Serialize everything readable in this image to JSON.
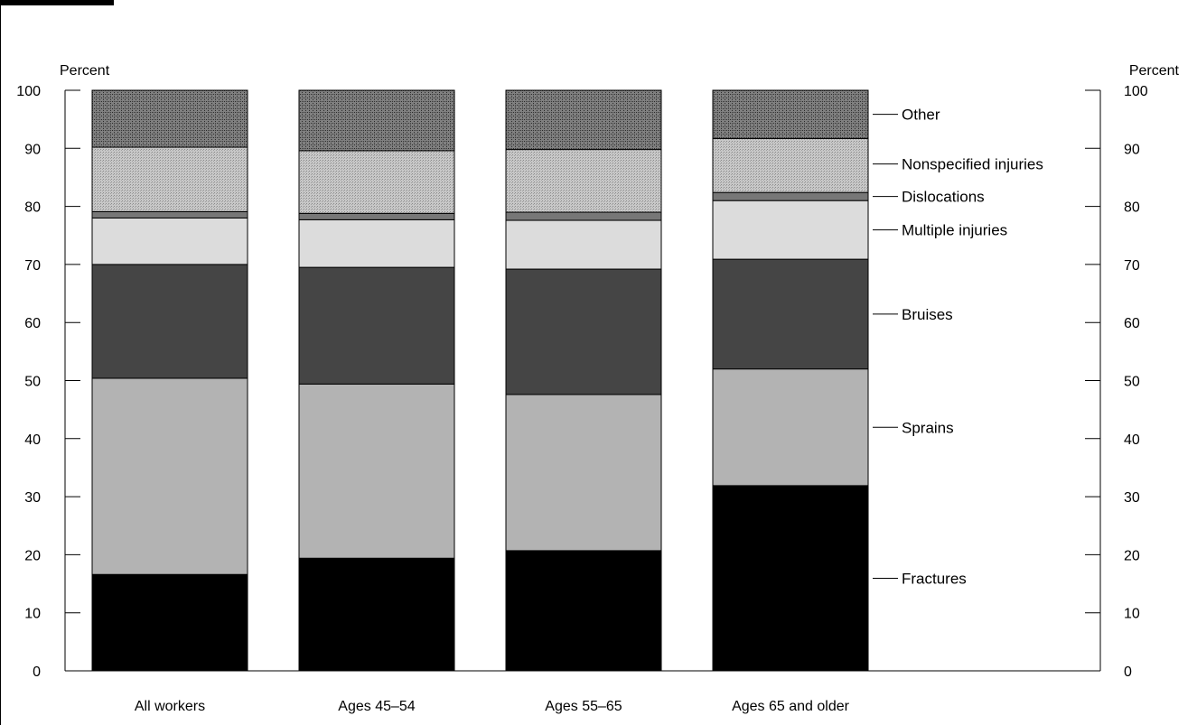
{
  "chart_data": {
    "type": "bar",
    "stacked": true,
    "categories": [
      "All workers",
      "Ages 45–54",
      "Ages 55–65",
      "Ages 65 and older"
    ],
    "series": [
      {
        "name": "Fractures",
        "values": [
          16.6,
          19.4,
          20.7,
          31.9
        ],
        "color": "#000000"
      },
      {
        "name": "Sprains",
        "values": [
          33.8,
          30.0,
          26.9,
          20.1
        ],
        "color": "#b3b3b3"
      },
      {
        "name": "Bruises",
        "values": [
          19.6,
          20.1,
          21.6,
          18.9
        ],
        "color": "#454545"
      },
      {
        "name": "Multiple injuries",
        "values": [
          8.0,
          8.2,
          8.4,
          10.1
        ],
        "color": "#dcdcdc"
      },
      {
        "name": "Dislocations",
        "values": [
          1.1,
          1.1,
          1.4,
          1.4
        ],
        "color": "#777777"
      },
      {
        "name": "Nonspecified injuries",
        "values": [
          11.1,
          10.8,
          10.8,
          9.3
        ],
        "color": "#bdbdbd"
      },
      {
        "name": "Other",
        "values": [
          9.8,
          10.4,
          10.2,
          8.3
        ],
        "color": "#5c5c5c"
      }
    ],
    "ylabel_left": "Percent",
    "ylabel_right": "Percent",
    "ylim": [
      0,
      100
    ],
    "yticks": [
      0,
      10,
      20,
      30,
      40,
      50,
      60,
      70,
      80,
      90,
      100
    ],
    "grid": false,
    "legend_placement": "right"
  }
}
